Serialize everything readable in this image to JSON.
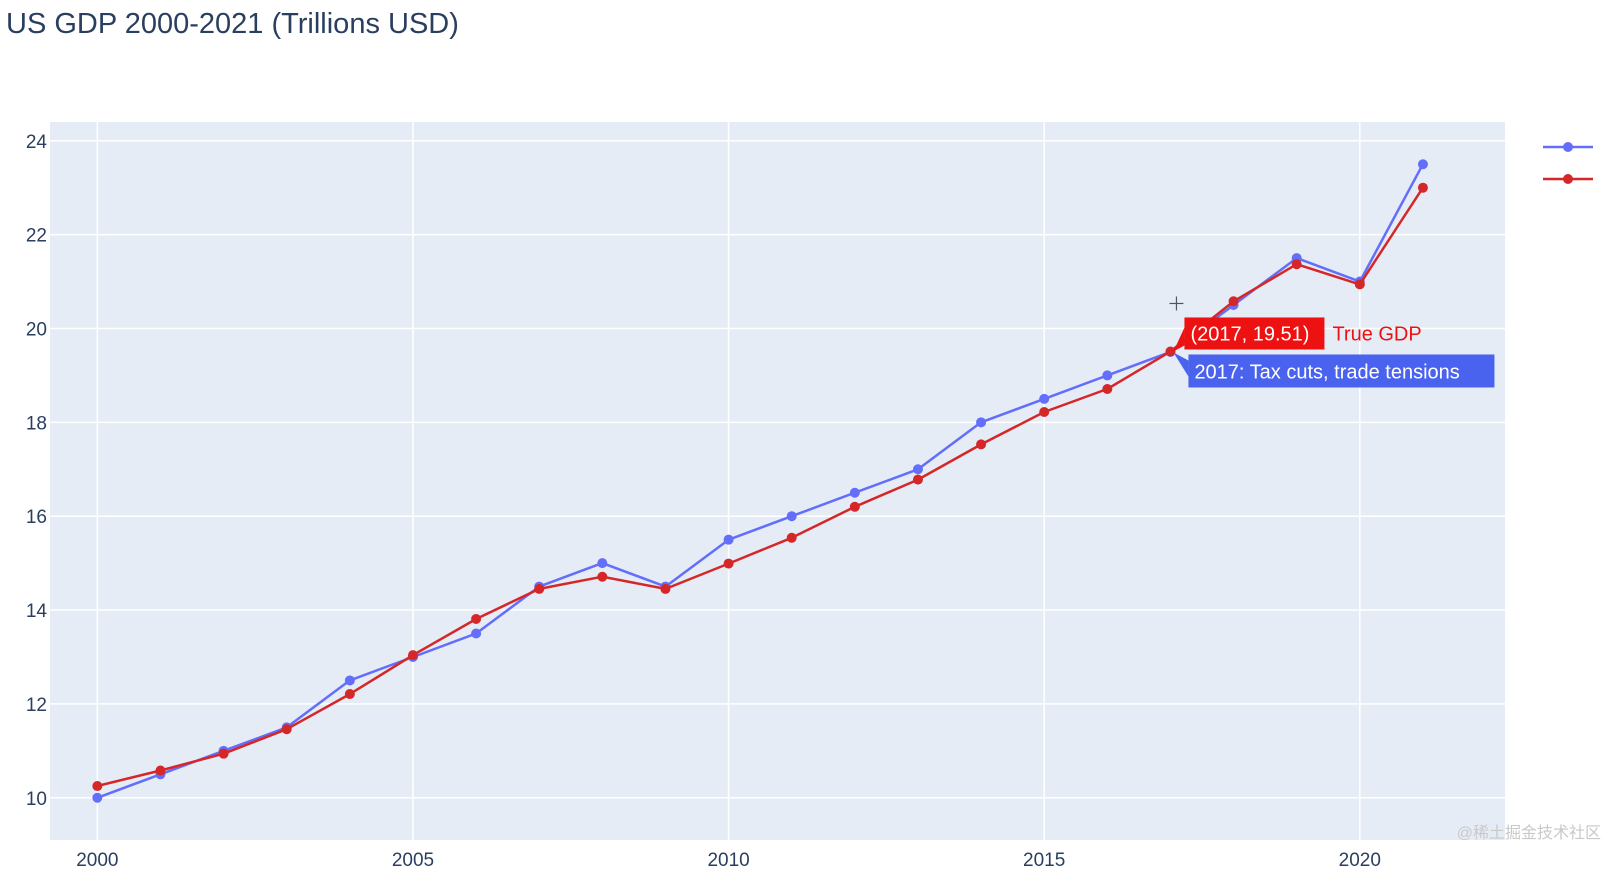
{
  "chart_data": {
    "type": "line",
    "title": "US GDP 2000-2021 (Trillions USD)",
    "xlabel": "",
    "ylabel": "",
    "xlim": [
      1999.25,
      2022.3
    ],
    "ylim": [
      9.1,
      24.4
    ],
    "x_ticks": [
      2000,
      2005,
      2010,
      2015,
      2020
    ],
    "y_ticks": [
      10,
      12,
      14,
      16,
      18,
      20,
      22,
      24
    ],
    "grid": true,
    "legend": "top-right",
    "x": [
      2000,
      2001,
      2002,
      2003,
      2004,
      2005,
      2006,
      2007,
      2008,
      2009,
      2010,
      2011,
      2012,
      2013,
      2014,
      2015,
      2016,
      2017,
      2018,
      2019,
      2020,
      2021
    ],
    "series": [
      {
        "name": "",
        "color": "#636efa",
        "values": [
          10.0,
          10.5,
          11.0,
          11.5,
          12.5,
          13.0,
          13.5,
          14.5,
          15.0,
          14.5,
          15.5,
          16.0,
          16.5,
          17.0,
          18.0,
          18.5,
          19.0,
          19.5,
          20.5,
          21.5,
          21.0,
          23.5
        ]
      },
      {
        "name": "",
        "color": "#d62728",
        "values": [
          10.25,
          10.58,
          10.94,
          11.46,
          12.21,
          13.04,
          13.81,
          14.45,
          14.71,
          14.45,
          14.99,
          15.54,
          16.2,
          16.78,
          17.53,
          18.22,
          18.71,
          19.51,
          20.58,
          21.37,
          20.94,
          23.0
        ]
      }
    ],
    "hover": {
      "x": 2017,
      "primary_text": "(2017, 19.51)",
      "primary_series": "True GDP",
      "primary_color": "#ee1111",
      "secondary_text": "2017: Tax cuts, trade tensions",
      "secondary_color": "#4a63ee"
    }
  },
  "colors": {
    "plot_bg": "#e5ecf6",
    "grid": "#ffffff",
    "text": "#2a3f5f"
  },
  "watermark": "@稀土掘金技术社区"
}
